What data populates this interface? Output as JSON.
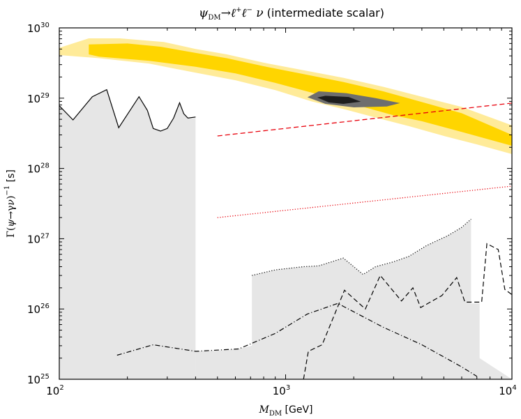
{
  "chart_data": {
    "type": "area",
    "title": "ψDM→ℓ⁺ℓ⁻ ν (intermediate scalar)",
    "xlabel": "M_DM [GeV]",
    "ylabel": "Γ(ψ→γν)⁻¹ [s]",
    "xscale": "log",
    "yscale": "log",
    "xlim": [
      100,
      10000
    ],
    "ylim": [
      1e+25,
      1e+30
    ],
    "x_ticks": [
      {
        "value": 100,
        "base": "10",
        "exp": "2"
      },
      {
        "value": 1000,
        "base": "10",
        "exp": "3"
      },
      {
        "value": 10000,
        "base": "10",
        "exp": "4"
      }
    ],
    "y_ticks": [
      {
        "value": 1e+25,
        "base": "10",
        "exp": "25"
      },
      {
        "value": 1e+26,
        "base": "10",
        "exp": "26"
      },
      {
        "value": 1e+27,
        "base": "10",
        "exp": "27"
      },
      {
        "value": 1e+28,
        "base": "10",
        "exp": "28"
      },
      {
        "value": 1e+29,
        "base": "10",
        "exp": "29"
      },
      {
        "value": 1e+30,
        "base": "10",
        "exp": "30"
      }
    ],
    "colors": {
      "band_outer": "#ffeb99",
      "band_inner": "#ffd500",
      "contour_outer": "#6e6e6e",
      "contour_inner": "#1e1e1e",
      "excluded_fill": "#e6e6e6",
      "red": "#e8000b"
    },
    "bands": [
      {
        "id": "outer",
        "upper": [
          [
            100,
            5.2e+29
          ],
          [
            135,
            7.1e+29
          ],
          [
            185,
            7.1e+29
          ],
          [
            290,
            6.3e+29
          ],
          [
            400,
            5e+29
          ],
          [
            550,
            4.2e+29
          ],
          [
            800,
            3.2e+29
          ],
          [
            1200,
            2.5e+29
          ],
          [
            1800,
            1.95e+29
          ],
          [
            2700,
            1.45e+29
          ],
          [
            4000,
            1.05e+29
          ],
          [
            6000,
            7.5e+28
          ],
          [
            10000,
            4.1e+28
          ]
        ],
        "lower": [
          [
            10000,
            1.6e+28
          ],
          [
            7000,
            2.2e+28
          ],
          [
            5000,
            2.9e+28
          ],
          [
            3500,
            4e+28
          ],
          [
            2500,
            5.3e+28
          ],
          [
            1800,
            7e+28
          ],
          [
            1300,
            9e+28
          ],
          [
            900,
            1.3e+29
          ],
          [
            600,
            1.8e+29
          ],
          [
            400,
            2.3e+29
          ],
          [
            250,
            3.1e+29
          ],
          [
            150,
            3.7e+29
          ],
          [
            100,
            4.1e+29
          ]
        ]
      },
      {
        "id": "inner",
        "upper": [
          [
            135,
            5.8e+29
          ],
          [
            200,
            6e+29
          ],
          [
            280,
            5.4e+29
          ],
          [
            400,
            4.4e+29
          ],
          [
            550,
            3.7e+29
          ],
          [
            800,
            2.85e+29
          ],
          [
            1200,
            2.2e+29
          ],
          [
            1800,
            1.7e+29
          ],
          [
            2700,
            1.25e+29
          ],
          [
            4000,
            8.8e+28
          ],
          [
            6000,
            6.1e+28
          ],
          [
            10000,
            3e+28
          ]
        ],
        "lower": [
          [
            10000,
            2.1e+28
          ],
          [
            6000,
            3.3e+28
          ],
          [
            4000,
            4.7e+28
          ],
          [
            3000,
            5.7e+28
          ],
          [
            2000,
            8.2e+28
          ],
          [
            1300,
            1.2e+29
          ],
          [
            900,
            1.65e+29
          ],
          [
            600,
            2.25e+29
          ],
          [
            400,
            2.8e+29
          ],
          [
            250,
            3.4e+29
          ],
          [
            150,
            3.9e+29
          ],
          [
            135,
            4.2e+29
          ]
        ]
      },
      {
        "id": "contour_outer",
        "polygon": [
          [
            1250,
            1.03e+29
          ],
          [
            1400,
            1.25e+29
          ],
          [
            1850,
            1.18e+29
          ],
          [
            2500,
            1e+29
          ],
          [
            3200,
            8.5e+28
          ],
          [
            2800,
            7.6e+28
          ],
          [
            2000,
            7.4e+28
          ],
          [
            1500,
            8.3e+28
          ]
        ]
      },
      {
        "id": "contour_inner",
        "polygon": [
          [
            1380,
            1.02e+29
          ],
          [
            1500,
            1.08e+29
          ],
          [
            1900,
            1.04e+29
          ],
          [
            2150,
            8.9e+28
          ],
          [
            1800,
            8.3e+28
          ],
          [
            1550,
            8.7e+28
          ]
        ]
      }
    ],
    "excluded_regions": [
      {
        "id": "left",
        "top": [
          [
            100,
            7.8e+28
          ],
          [
            115,
            4.9e+28
          ],
          [
            140,
            1.05e+29
          ],
          [
            162,
            1.32e+29
          ],
          [
            183,
            3.8e+28
          ],
          [
            225,
            1.05e+29
          ],
          [
            245,
            6.7e+28
          ],
          [
            260,
            3.7e+28
          ],
          [
            280,
            3.4e+28
          ],
          [
            300,
            3.7e+28
          ],
          [
            320,
            5.2e+28
          ],
          [
            340,
            8.6e+28
          ],
          [
            355,
            6e+28
          ],
          [
            370,
            5.2e+28
          ],
          [
            400,
            5.4e+28
          ]
        ],
        "bottom_y": 1e+25
      },
      {
        "id": "right",
        "top": [
          [
            400,
            2.5e+25
          ],
          [
            500,
            2.55e+25
          ],
          [
            620,
            2.7e+25
          ],
          [
            710,
            3e+25
          ],
          [
            710,
            3e+26
          ],
          [
            900,
            3.6e+26
          ],
          [
            1200,
            4e+26
          ],
          [
            1400,
            4.1e+26
          ],
          [
            1800,
            5.3e+26
          ],
          [
            2200,
            3.1e+26
          ],
          [
            2500,
            4e+26
          ],
          [
            3000,
            4.7e+26
          ],
          [
            3500,
            5.6e+26
          ],
          [
            4200,
            8e+26
          ],
          [
            5200,
            1.1e+27
          ],
          [
            6000,
            1.45e+27
          ],
          [
            6600,
            1.9e+27
          ],
          [
            6600,
            1.2e+26
          ],
          [
            7200,
            1.2e+26
          ],
          [
            7200,
            2e+25
          ],
          [
            10000,
            1e+25
          ]
        ],
        "bottom_y": 1e+25
      }
    ],
    "series": [
      {
        "id": "left_solid",
        "style": "solid",
        "color": "#000000",
        "points": [
          [
            100,
            7.8e+28
          ],
          [
            115,
            4.9e+28
          ],
          [
            140,
            1.05e+29
          ],
          [
            162,
            1.32e+29
          ],
          [
            183,
            3.8e+28
          ],
          [
            225,
            1.05e+29
          ],
          [
            245,
            6.7e+28
          ],
          [
            260,
            3.7e+28
          ],
          [
            280,
            3.4e+28
          ],
          [
            300,
            3.7e+28
          ],
          [
            320,
            5.2e+28
          ],
          [
            340,
            8.6e+28
          ],
          [
            355,
            6e+28
          ],
          [
            370,
            5.2e+28
          ],
          [
            400,
            5.4e+28
          ]
        ]
      },
      {
        "id": "dotted_black",
        "style": "dotted",
        "color": "#000000",
        "points": [
          [
            710,
            3e+26
          ],
          [
            900,
            3.6e+26
          ],
          [
            1200,
            4e+26
          ],
          [
            1400,
            4.1e+26
          ],
          [
            1800,
            5.3e+26
          ],
          [
            2200,
            3.1e+26
          ],
          [
            2500,
            4e+26
          ],
          [
            3000,
            4.7e+26
          ],
          [
            3500,
            5.6e+26
          ],
          [
            4200,
            8e+26
          ],
          [
            5200,
            1.1e+27
          ],
          [
            6000,
            1.45e+27
          ],
          [
            6600,
            1.9e+27
          ]
        ]
      },
      {
        "id": "dashed_black",
        "style": "dashed",
        "color": "#000000",
        "points": [
          [
            1200,
            1e+25
          ],
          [
            1260,
            2.5e+25
          ],
          [
            1450,
            3.1e+25
          ],
          [
            1820,
            1.85e+26
          ],
          [
            2250,
            1e+26
          ],
          [
            2620,
            3e+26
          ],
          [
            3250,
            1.3e+26
          ],
          [
            3650,
            2e+26
          ],
          [
            3950,
            1.05e+26
          ],
          [
            4900,
            1.55e+26
          ],
          [
            5700,
            2.8e+26
          ],
          [
            6200,
            1.25e+26
          ],
          [
            7350,
            1.25e+26
          ],
          [
            7750,
            8.5e+26
          ],
          [
            8700,
            7e+26
          ],
          [
            9300,
            1.9e+26
          ],
          [
            10000,
            1.6e+26
          ]
        ]
      },
      {
        "id": "dashdot_black",
        "style": "dashdot",
        "color": "#000000",
        "points": [
          [
            180,
            2.2e+25
          ],
          [
            260,
            3.1e+25
          ],
          [
            400,
            2.5e+25
          ],
          [
            620,
            2.7e+25
          ],
          [
            900,
            4.5e+25
          ],
          [
            1250,
            8.5e+25
          ],
          [
            1700,
            1.2e+26
          ],
          [
            2700,
            5.5e+25
          ],
          [
            4000,
            3.1e+25
          ],
          [
            6000,
            1.5e+25
          ],
          [
            7000,
            1.1e+25
          ]
        ]
      },
      {
        "id": "red_dashed",
        "style": "dashed",
        "color": "#e8000b",
        "points": [
          [
            500,
            2.9e+28
          ],
          [
            10000,
            8.5e+28
          ]
        ]
      },
      {
        "id": "red_dotted",
        "style": "dotted",
        "color": "#e8000b",
        "points": [
          [
            500,
            2e+27
          ],
          [
            10000,
            5.6e+27
          ]
        ]
      }
    ]
  }
}
